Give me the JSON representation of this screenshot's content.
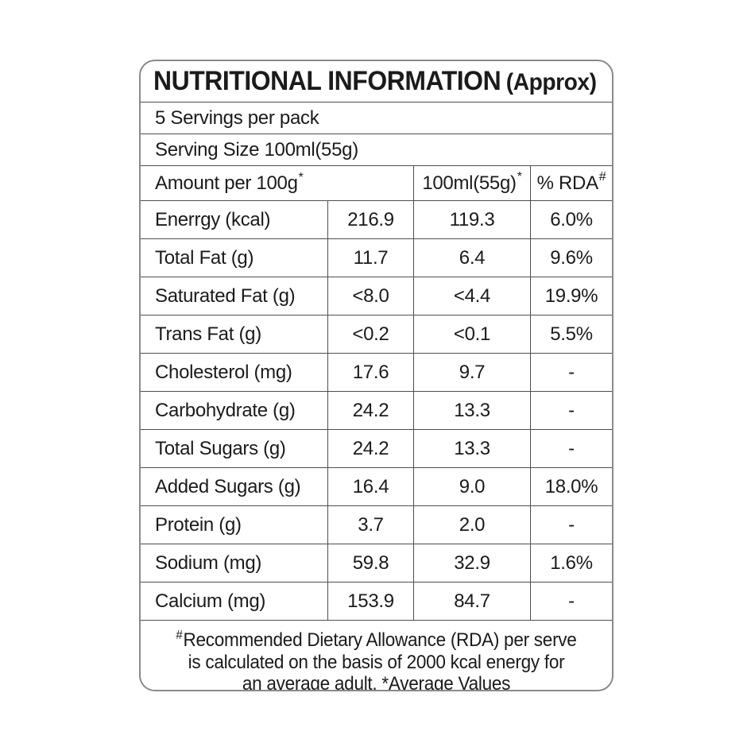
{
  "title": {
    "main": "NUTRITIONAL INFORMATION",
    "suffix": "(Approx)"
  },
  "servings_line": "5 Servings per pack",
  "serving_size_line": "Serving Size 100ml(55g)",
  "columns": {
    "amount": {
      "label": "Amount per 100g",
      "sup": "*"
    },
    "per_serve": {
      "label": "100ml(55g)",
      "sup": "*"
    },
    "rda": {
      "label": "% RDA",
      "sup": "#"
    }
  },
  "rows": [
    {
      "label": "Enerrgy (kcal)",
      "per100": "216.9",
      "perServe": "119.3",
      "rda": "6.0%"
    },
    {
      "label": "Total Fat (g)",
      "per100": "11.7",
      "perServe": "6.4",
      "rda": "9.6%"
    },
    {
      "label": "Saturated Fat (g)",
      "per100": "<8.0",
      "perServe": "<4.4",
      "rda": "19.9%"
    },
    {
      "label": "Trans Fat (g)",
      "per100": "<0.2",
      "perServe": "<0.1",
      "rda": "5.5%"
    },
    {
      "label": "Cholesterol (mg)",
      "per100": "17.6",
      "perServe": "9.7",
      "rda": "-"
    },
    {
      "label": "Carbohydrate (g)",
      "per100": "24.2",
      "perServe": "13.3",
      "rda": "-"
    },
    {
      "label": "Total Sugars (g)",
      "per100": "24.2",
      "perServe": "13.3",
      "rda": "-"
    },
    {
      "label": "Added Sugars (g)",
      "per100": "16.4",
      "perServe": "9.0",
      "rda": "18.0%"
    },
    {
      "label": "Protein (g)",
      "per100": "3.7",
      "perServe": "2.0",
      "rda": "-"
    },
    {
      "label": "Sodium (mg)",
      "per100": "59.8",
      "perServe": "32.9",
      "rda": "1.6%"
    },
    {
      "label": "Calcium (mg)",
      "per100": "153.9",
      "perServe": "84.7",
      "rda": "-"
    }
  ],
  "footnote": {
    "marker": "#",
    "line1": "Recommended Dietary Allowance (RDA) per serve",
    "line2": "is calculated on the basis of 2000 kcal energy for",
    "line3": "an average adult. *Average Values"
  }
}
